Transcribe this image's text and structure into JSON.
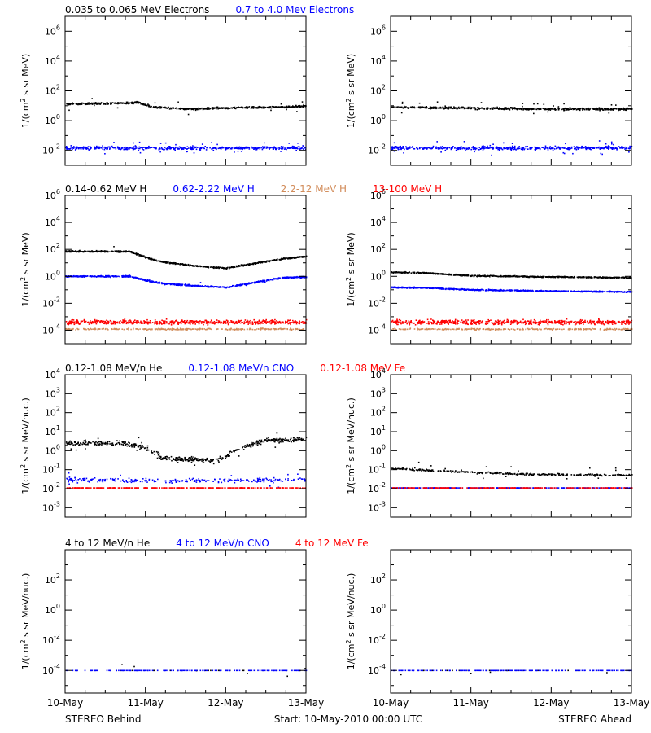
{
  "colors": {
    "black": "#000000",
    "blue": "#0000ff",
    "orange": "#d28c5a",
    "red": "#ff0000"
  },
  "footer": {
    "left": "STEREO Behind",
    "center": "Start: 10-May-2010 00:00 UTC",
    "right": "STEREO Ahead"
  },
  "x_axis": {
    "labels": [
      "10-May",
      "11-May",
      "12-May",
      "13-May"
    ],
    "range_days": [
      0,
      3
    ]
  },
  "rows": [
    {
      "id": "electrons",
      "ylabel_html": "1/(cm<tspan baseline-shift='super' font-size='8'>2</tspan> s sr MeV)",
      "ylim_exp": [
        -3,
        7
      ],
      "ticks_exp": [
        -2,
        0,
        2,
        4,
        6
      ],
      "titles": [
        {
          "text": "0.035 to 0.065 MeV Electrons",
          "color": "black"
        },
        {
          "text": "0.7 to 4.0 Mev Electrons",
          "color": "blue"
        }
      ]
    },
    {
      "id": "protons",
      "ylabel_html": "1/(cm<tspan baseline-shift='super' font-size='8'>2</tspan> s sr MeV)",
      "ylim_exp": [
        -5,
        6
      ],
      "ticks_exp": [
        -4,
        -2,
        0,
        2,
        4,
        6
      ],
      "titles": [
        {
          "text": "0.14-0.62 MeV H",
          "color": "black"
        },
        {
          "text": "0.62-2.22 MeV H",
          "color": "blue"
        },
        {
          "text": "2.2-12 MeV H",
          "color": "orange"
        },
        {
          "text": "13-100 MeV H",
          "color": "red"
        }
      ]
    },
    {
      "id": "heavy_low",
      "ylabel_html": "1/(cm<tspan baseline-shift='super' font-size='8'>2</tspan> s sr MeV/nuc.)",
      "ylim_exp": [
        -3.5,
        4
      ],
      "ticks_exp": [
        -3,
        -2,
        -1,
        0,
        1,
        2,
        3,
        4
      ],
      "titles": [
        {
          "text": "0.12-1.08 MeV/n He",
          "color": "black"
        },
        {
          "text": "0.12-1.08 MeV/n CNO",
          "color": "blue"
        },
        {
          "text": "0.12-1.08 MeV Fe",
          "color": "red"
        }
      ]
    },
    {
      "id": "heavy_high",
      "ylabel_html": "1/(cm<tspan baseline-shift='super' font-size='8'>2</tspan> s sr MeV/nuc.)",
      "ylim_exp": [
        -5.5,
        4
      ],
      "ticks_exp": [
        -4,
        -2,
        0,
        2
      ],
      "titles": [
        {
          "text": "4 to 12 MeV/n He",
          "color": "black"
        },
        {
          "text": "4 to 12 MeV/n CNO",
          "color": "blue"
        },
        {
          "text": "4 to 12 MeV Fe",
          "color": "red"
        }
      ]
    }
  ],
  "chart_data": [
    {
      "type": "scatter",
      "panel": "STEREO Behind – electrons",
      "yscale": "log",
      "series": [
        {
          "name": "0.035 to 0.065 MeV Electrons",
          "color": "black",
          "x": [
            0,
            0.5,
            0.9,
            1.1,
            1.5,
            2.0,
            2.5,
            3.0
          ],
          "y": [
            13,
            14,
            16,
            8,
            6,
            7,
            8,
            9
          ]
        },
        {
          "name": "0.7 to 4.0 Mev Electrons",
          "color": "blue",
          "x": [
            0,
            1.5,
            3.0
          ],
          "y": [
            0.015,
            0.014,
            0.015
          ]
        }
      ]
    },
    {
      "type": "scatter",
      "panel": "STEREO Ahead – electrons",
      "yscale": "log",
      "series": [
        {
          "name": "0.035 to 0.065 MeV Electrons",
          "color": "black",
          "x": [
            0,
            1.0,
            2.0,
            3.0
          ],
          "y": [
            8,
            7,
            6,
            6
          ]
        },
        {
          "name": "0.7 to 4.0 Mev Electrons",
          "color": "blue",
          "x": [
            0,
            1.5,
            3.0
          ],
          "y": [
            0.015,
            0.014,
            0.015
          ]
        }
      ]
    },
    {
      "type": "scatter",
      "panel": "STEREO Behind – protons",
      "yscale": "log",
      "series": [
        {
          "name": "0.14-0.62 MeV H",
          "color": "black",
          "x": [
            0,
            0.8,
            1.0,
            1.2,
            1.6,
            2.0,
            2.4,
            2.7,
            3.0
          ],
          "y": [
            70,
            70,
            25,
            12,
            6,
            4,
            10,
            20,
            30
          ]
        },
        {
          "name": "0.62-2.22 MeV H",
          "color": "blue",
          "x": [
            0,
            0.8,
            1.0,
            1.2,
            1.6,
            2.0,
            2.4,
            2.7,
            3.0
          ],
          "y": [
            1.0,
            1.0,
            0.5,
            0.3,
            0.2,
            0.15,
            0.4,
            0.8,
            0.9
          ]
        },
        {
          "name": "2.2-12 MeV H",
          "color": "orange",
          "x": [
            0,
            1.5,
            3.0
          ],
          "y": [
            0.00012,
            0.00012,
            0.00012
          ]
        },
        {
          "name": "13-100 MeV H",
          "color": "red",
          "x": [
            0,
            1.5,
            3.0
          ],
          "y": [
            0.0004,
            0.0004,
            0.0004
          ]
        }
      ]
    },
    {
      "type": "scatter",
      "panel": "STEREO Ahead – protons",
      "yscale": "log",
      "series": [
        {
          "name": "0.14-0.62 MeV H",
          "color": "black",
          "x": [
            0,
            0.4,
            1.0,
            2.0,
            3.0
          ],
          "y": [
            2.0,
            1.8,
            1.1,
            0.9,
            0.8
          ]
        },
        {
          "name": "0.62-2.22 MeV H",
          "color": "blue",
          "x": [
            0,
            0.4,
            1.0,
            2.0,
            3.0
          ],
          "y": [
            0.15,
            0.14,
            0.1,
            0.08,
            0.07
          ]
        },
        {
          "name": "2.2-12 MeV H",
          "color": "orange",
          "x": [
            0,
            1.5,
            3.0
          ],
          "y": [
            0.00012,
            0.00012,
            0.00012
          ]
        },
        {
          "name": "13-100 MeV H",
          "color": "red",
          "x": [
            0,
            1.5,
            3.0
          ],
          "y": [
            0.0004,
            0.0004,
            0.0004
          ]
        }
      ]
    },
    {
      "type": "scatter",
      "panel": "STEREO Behind – 0.12-1.08 MeV/n ions",
      "yscale": "log",
      "series": [
        {
          "name": "0.12-1.08 MeV/n He",
          "color": "black",
          "x": [
            0,
            0.7,
            1.0,
            1.2,
            1.5,
            1.9,
            2.2,
            2.5,
            3.0
          ],
          "y": [
            2.5,
            2.5,
            1.5,
            0.4,
            0.35,
            0.3,
            1.5,
            3.5,
            4
          ]
        },
        {
          "name": "0.12-1.08 MeV/n CNO",
          "color": "blue",
          "x": [
            0,
            1.5,
            3.0
          ],
          "y": [
            0.03,
            0.025,
            0.03
          ]
        },
        {
          "name": "0.12-1.08 MeV Fe",
          "color": "red",
          "x": [
            0,
            1.5,
            3.0
          ],
          "y": [
            0.011,
            0.011,
            0.011
          ]
        }
      ]
    },
    {
      "type": "scatter",
      "panel": "STEREO Ahead – 0.12-1.08 MeV/n ions",
      "yscale": "log",
      "series": [
        {
          "name": "0.12-1.08 MeV/n He",
          "color": "black",
          "x": [
            0,
            0.5,
            1.5,
            3.0
          ],
          "y": [
            0.12,
            0.09,
            0.06,
            0.05
          ]
        },
        {
          "name": "0.12-1.08 MeV/n CNO",
          "color": "blue",
          "x": [
            0,
            1.5,
            3.0
          ],
          "y": [
            0.011,
            0.011,
            0.011
          ]
        },
        {
          "name": "0.12-1.08 MeV Fe",
          "color": "red",
          "x": [
            0,
            1.5,
            3.0
          ],
          "y": [
            0.011,
            0.011,
            0.011
          ]
        }
      ]
    },
    {
      "type": "scatter",
      "panel": "STEREO Behind – 4 to 12 MeV/n ions",
      "yscale": "log",
      "series": [
        {
          "name": "4 to 12 MeV/n He",
          "color": "black",
          "x": [
            0,
            1.5,
            3.0
          ],
          "y": [
            0.0001,
            0.0001,
            0.0001
          ]
        },
        {
          "name": "4 to 12 MeV/n CNO",
          "color": "blue",
          "x": [
            0,
            1.5,
            3.0
          ],
          "y": [
            0.0001,
            0.0001,
            0.0001
          ]
        }
      ]
    },
    {
      "type": "scatter",
      "panel": "STEREO Ahead – 4 to 12 MeV/n ions",
      "yscale": "log",
      "series": [
        {
          "name": "4 to 12 MeV/n He",
          "color": "black",
          "x": [
            0,
            1.5,
            3.0
          ],
          "y": [
            0.0001,
            0.0001,
            0.0001
          ]
        },
        {
          "name": "4 to 12 MeV/n CNO",
          "color": "blue",
          "x": [
            0,
            1.5,
            3.0
          ],
          "y": [
            0.0001,
            0.0001,
            0.0001
          ]
        }
      ]
    }
  ]
}
